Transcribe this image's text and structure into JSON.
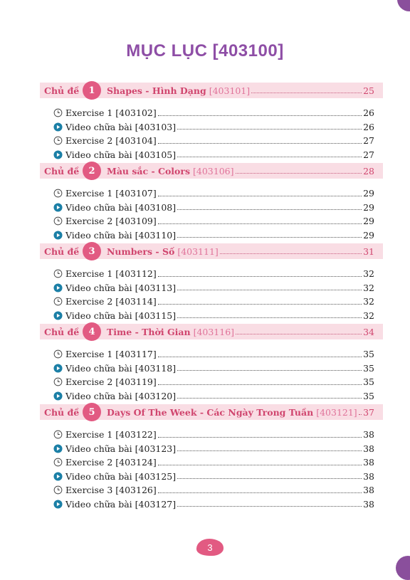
{
  "title": "MỤC LỤC [403100]",
  "page_number": "3",
  "topic_prefix": "Chủ đề",
  "topics": [
    {
      "num": "1",
      "title": "Shapes - Hình Dạng",
      "code": "[403101]",
      "page": "25",
      "entries": [
        {
          "type": "exercise",
          "label": "Exercise 1 [403102]",
          "page": "26"
        },
        {
          "type": "video",
          "label": "Video chữa bài [403103]",
          "page": "26"
        },
        {
          "type": "exercise",
          "label": "Exercise 2 [403104]",
          "page": "27"
        },
        {
          "type": "video",
          "label": "Video chữa bài [403105]",
          "page": "27"
        }
      ]
    },
    {
      "num": "2",
      "title": "Màu sắc - Colors",
      "code": "[403106]",
      "page": "28",
      "entries": [
        {
          "type": "exercise",
          "label": "Exercise 1 [403107]",
          "page": "29"
        },
        {
          "type": "video",
          "label": "Video chữa bài [403108]",
          "page": "29"
        },
        {
          "type": "exercise",
          "label": "Exercise 2 [403109]",
          "page": "29"
        },
        {
          "type": "video",
          "label": "Video chữa bài [403110]",
          "page": "29"
        }
      ]
    },
    {
      "num": "3",
      "title": "Numbers - Số",
      "code": "[403111]",
      "page": "31",
      "entries": [
        {
          "type": "exercise",
          "label": "Exercise 1 [403112]",
          "page": "32"
        },
        {
          "type": "video",
          "label": "Video chữa bài [403113]",
          "page": "32"
        },
        {
          "type": "exercise",
          "label": "Exercise 2 [403114]",
          "page": "32"
        },
        {
          "type": "video",
          "label": "Video chữa bài [403115]",
          "page": "32"
        }
      ]
    },
    {
      "num": "4",
      "title": "Time - Thời Gian",
      "code": "[403116]",
      "page": "34",
      "entries": [
        {
          "type": "exercise",
          "label": "Exercise 1 [403117]",
          "page": "35"
        },
        {
          "type": "video",
          "label": "Video chữa bài [403118]",
          "page": "35"
        },
        {
          "type": "exercise",
          "label": "Exercise 2 [403119]",
          "page": "35"
        },
        {
          "type": "video",
          "label": "Video chữa bài [403120]",
          "page": "35"
        }
      ]
    },
    {
      "num": "5",
      "title": "Days Of The Week - Các Ngày Trong Tuần",
      "code": "[403121]",
      "page": "37",
      "entries": [
        {
          "type": "exercise",
          "label": "Exercise 1 [403122]",
          "page": "38"
        },
        {
          "type": "video",
          "label": "Video chữa bài [403123]",
          "page": "38"
        },
        {
          "type": "exercise",
          "label": "Exercise 2 [403124]",
          "page": "38"
        },
        {
          "type": "video",
          "label": "Video chữa bài [403125]",
          "page": "38"
        },
        {
          "type": "exercise",
          "label": "Exercise 3 [403126]",
          "page": "38"
        },
        {
          "type": "video",
          "label": "Video chữa bài [403127]",
          "page": "38"
        }
      ]
    }
  ],
  "icons": {
    "exercise": "clock-icon",
    "video": "play-circle-icon"
  },
  "colors": {
    "title": "#8e4ea6",
    "topic_band": "#f9dde4",
    "topic_text": "#d0456e",
    "badge": "#e25a82",
    "video_icon": "#1b7fa6"
  }
}
